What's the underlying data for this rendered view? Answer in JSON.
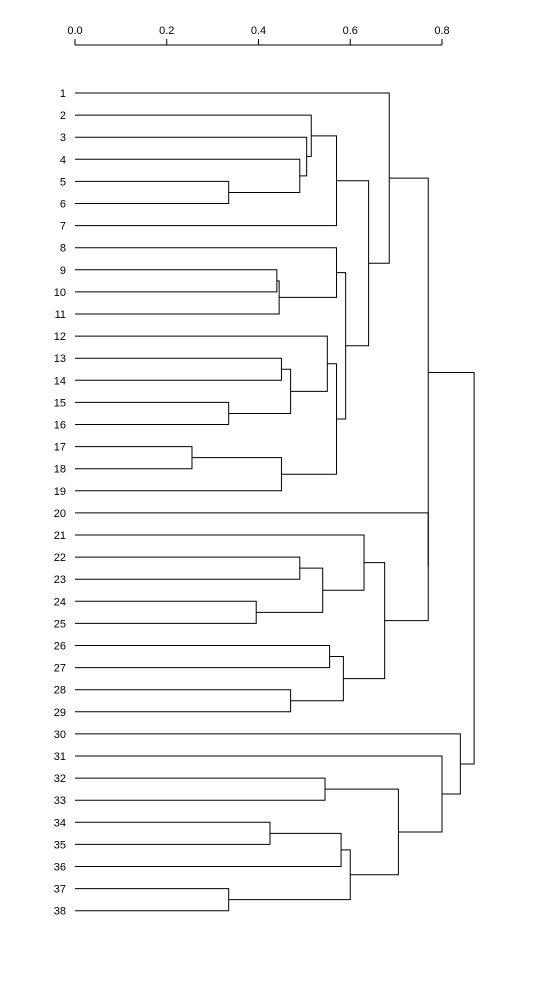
{
  "axis": {
    "ticks": [
      0.0,
      0.2,
      0.4,
      0.6,
      0.8
    ],
    "tick_labels": [
      "0.0",
      "0.2",
      "0.4",
      "0.6",
      "0.8"
    ],
    "range": [
      0.0,
      0.8
    ]
  },
  "leaves": [
    "1",
    "2",
    "3",
    "4",
    "5",
    "6",
    "7",
    "8",
    "9",
    "10",
    "11",
    "12",
    "13",
    "14",
    "15",
    "16",
    "17",
    "18",
    "19",
    "20",
    "21",
    "22",
    "23",
    "24",
    "25",
    "26",
    "27",
    "28",
    "29",
    "30",
    "31",
    "32",
    "33",
    "34",
    "35",
    "36",
    "37",
    "38"
  ],
  "merges": [
    {
      "a": 5,
      "b": 6,
      "h": 0.335
    },
    {
      "a": 4,
      "b": "m1",
      "h": 0.49
    },
    {
      "a": 3,
      "b": "m2",
      "h": 0.505
    },
    {
      "a": 2,
      "b": "m3",
      "h": 0.515
    },
    {
      "a": "m4",
      "b": 7,
      "h": 0.57
    },
    {
      "a": 9,
      "b": 10,
      "h": 0.44
    },
    {
      "a": "m6",
      "b": 11,
      "h": 0.445
    },
    {
      "a": 8,
      "b": "m7",
      "h": 0.57
    },
    {
      "a": 13,
      "b": 14,
      "h": 0.45
    },
    {
      "a": 15,
      "b": 16,
      "h": 0.335
    },
    {
      "a": "m9",
      "b": "m10",
      "h": 0.47
    },
    {
      "a": 12,
      "b": "m11",
      "h": 0.55
    },
    {
      "a": 17,
      "b": 18,
      "h": 0.255
    },
    {
      "a": "m13",
      "b": 19,
      "h": 0.45
    },
    {
      "a": "m12",
      "b": "m14",
      "h": 0.57
    },
    {
      "a": "m8",
      "b": "m15",
      "h": 0.59
    },
    {
      "a": "m5",
      "b": "m16",
      "h": 0.64
    },
    {
      "a": 1,
      "b": "m17",
      "h": 0.685
    },
    {
      "a": 22,
      "b": 23,
      "h": 0.49
    },
    {
      "a": 24,
      "b": 25,
      "h": 0.395
    },
    {
      "a": "m19",
      "b": "m20",
      "h": 0.54
    },
    {
      "a": 21,
      "b": "m21",
      "h": 0.63
    },
    {
      "a": 26,
      "b": 27,
      "h": 0.555
    },
    {
      "a": 28,
      "b": 29,
      "h": 0.47
    },
    {
      "a": "m23",
      "b": "m24",
      "h": 0.585
    },
    {
      "a": "m22",
      "b": "m25",
      "h": 0.675
    },
    {
      "a": 20,
      "b": "m26",
      "h": 0.77
    },
    {
      "a": "m18",
      "b": "m27",
      "h": 0.77
    },
    {
      "a": 32,
      "b": 33,
      "h": 0.545
    },
    {
      "a": 34,
      "b": 35,
      "h": 0.425
    },
    {
      "a": "m30",
      "b": 36,
      "h": 0.58
    },
    {
      "a": 37,
      "b": 38,
      "h": 0.335
    },
    {
      "a": "m31",
      "b": "m32",
      "h": 0.6
    },
    {
      "a": "m29",
      "b": "m33",
      "h": 0.705
    },
    {
      "a": 31,
      "b": "m34",
      "h": 0.8
    },
    {
      "a": 30,
      "b": "m35",
      "h": 0.84
    },
    {
      "a": "m28",
      "b": "m36",
      "h": 0.87
    }
  ]
}
